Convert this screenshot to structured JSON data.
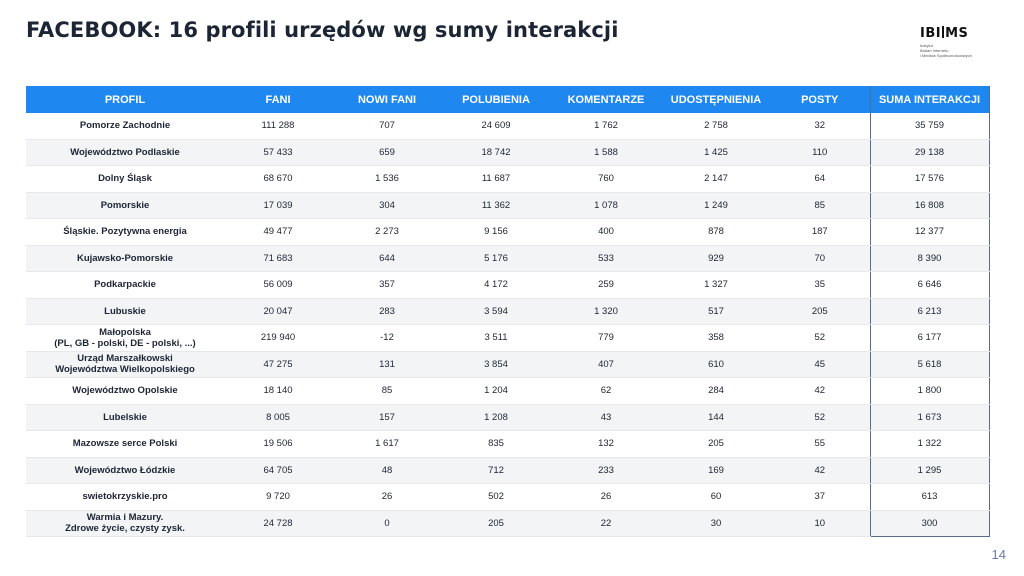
{
  "title": "FACEBOOK:  16 profili urzędów wg sumy interakcji",
  "logo": {
    "word_left": "IBI",
    "word_right": "MS",
    "subtitle_lines": [
      "Instytut",
      "Badań Internetu",
      "i Mediów Społecznościowych"
    ]
  },
  "table": {
    "headers": [
      "PROFIL",
      "FANI",
      "NOWI FANI",
      "POLUBIENIA",
      "KOMENTARZE",
      "UDOSTĘPNIENIA",
      "POSTY",
      "SUMA INTERAKCJI"
    ],
    "rows": [
      {
        "name": [
          "Pomorze Zachodnie"
        ],
        "values": [
          "111 288",
          "707",
          "24 609",
          "1 762",
          "2 758",
          "32",
          "35 759"
        ]
      },
      {
        "name": [
          "Województwo Podlaskie"
        ],
        "values": [
          "57 433",
          "659",
          "18 742",
          "1 588",
          "1 425",
          "110",
          "29 138"
        ]
      },
      {
        "name": [
          "Dolny Śląsk"
        ],
        "values": [
          "68 670",
          "1 536",
          "11 687",
          "760",
          "2 147",
          "64",
          "17 576"
        ]
      },
      {
        "name": [
          "Pomorskie"
        ],
        "values": [
          "17 039",
          "304",
          "11 362",
          "1 078",
          "1 249",
          "85",
          "16 808"
        ]
      },
      {
        "name": [
          "Śląskie. Pozytywna energia"
        ],
        "values": [
          "49 477",
          "2 273",
          "9 156",
          "400",
          "878",
          "187",
          "12 377"
        ]
      },
      {
        "name": [
          "Kujawsko-Pomorskie"
        ],
        "values": [
          "71 683",
          "644",
          "5 176",
          "533",
          "929",
          "70",
          "8 390"
        ]
      },
      {
        "name": [
          "Podkarpackie"
        ],
        "values": [
          "56 009",
          "357",
          "4 172",
          "259",
          "1 327",
          "35",
          "6 646"
        ]
      },
      {
        "name": [
          "Lubuskie"
        ],
        "values": [
          "20 047",
          "283",
          "3 594",
          "1 320",
          "517",
          "205",
          "6 213"
        ]
      },
      {
        "name": [
          "Małopolska",
          "(PL, GB - polski, DE - polski, ...)"
        ],
        "values": [
          "219 940",
          "-12",
          "3 511",
          "779",
          "358",
          "52",
          "6 177"
        ]
      },
      {
        "name": [
          "Urząd Marszałkowski",
          "Województwa Wielkopolskiego"
        ],
        "values": [
          "47 275",
          "131",
          "3 854",
          "407",
          "610",
          "45",
          "5 618"
        ]
      },
      {
        "name": [
          "Województwo Opolskie"
        ],
        "values": [
          "18 140",
          "85",
          "1 204",
          "62",
          "284",
          "42",
          "1 800"
        ]
      },
      {
        "name": [
          "Lubelskie"
        ],
        "values": [
          "8 005",
          "157",
          "1 208",
          "43",
          "144",
          "52",
          "1 673"
        ]
      },
      {
        "name": [
          "Mazowsze serce Polski"
        ],
        "values": [
          "19 506",
          "1 617",
          "835",
          "132",
          "205",
          "55",
          "1 322"
        ]
      },
      {
        "name": [
          "Województwo Łódzkie"
        ],
        "values": [
          "64 705",
          "48",
          "712",
          "233",
          "169",
          "42",
          "1 295"
        ]
      },
      {
        "name": [
          "swietokrzyskie.pro"
        ],
        "values": [
          "9 720",
          "26",
          "502",
          "26",
          "60",
          "37",
          "613"
        ]
      },
      {
        "name": [
          "Warmia i Mazury.",
          "Zdrowe życie, czysty zysk."
        ],
        "values": [
          "24 728",
          "0",
          "205",
          "22",
          "30",
          "10",
          "300"
        ]
      }
    ]
  },
  "page_number": "14"
}
